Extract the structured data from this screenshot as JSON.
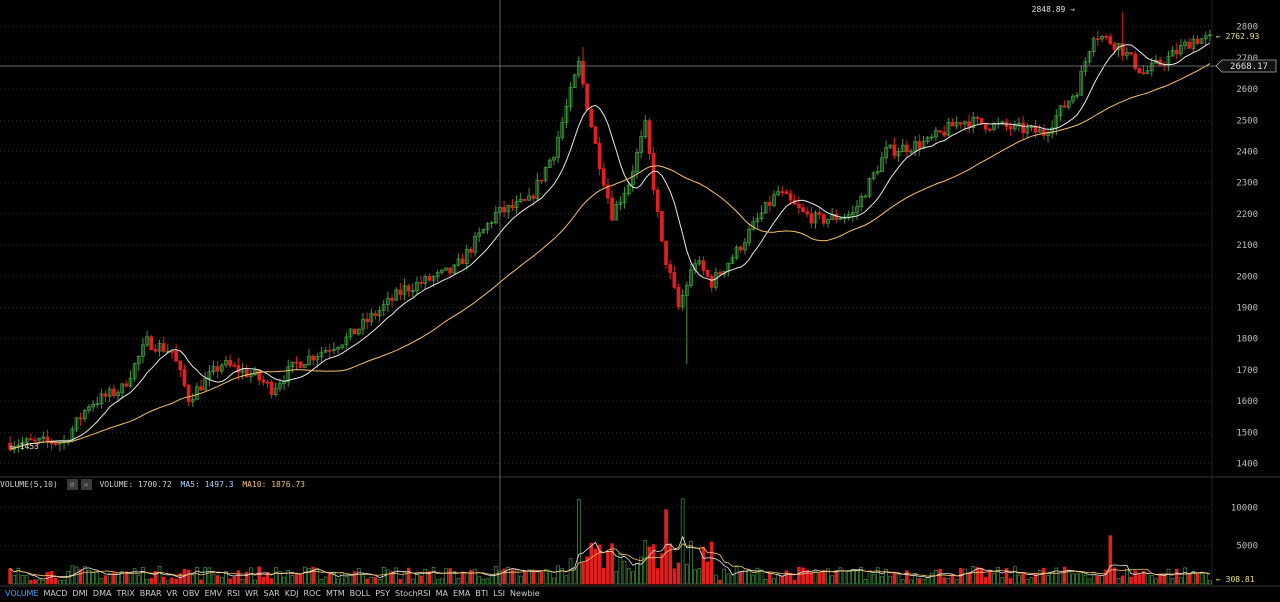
{
  "chart_data": [
    {
      "type": "candlestick",
      "ylim": [
        1360,
        2860
      ],
      "y_ticks": [
        1400,
        1500,
        1600,
        1700,
        1800,
        1900,
        2000,
        2100,
        2200,
        2300,
        2400,
        2500,
        2600,
        2700,
        2800
      ],
      "grid": true,
      "annotations": {
        "high_label": "2848.89 →",
        "low_label": "← 1453",
        "last_label": "← 2762.93",
        "crosshair_label": "2668.17"
      },
      "ma_series": [
        {
          "name": "MA5",
          "color": "#e8e8e8"
        },
        {
          "name": "MA10",
          "color": "#f5c26b"
        }
      ]
    },
    {
      "type": "bar",
      "ylim": [
        0,
        12000
      ],
      "y_ticks": [
        5000,
        10000
      ],
      "last_label": "← 308.81",
      "indicator": "VOLUME(5,10)",
      "readout": {
        "volume": "VOLUME: 1700.72",
        "ma5": "MA5: 1497.3",
        "ma10": "MA10: 1876.73"
      }
    }
  ],
  "indicator_tabs": [
    "VOLUME",
    "MACD",
    "DMI",
    "DMA",
    "TRIX",
    "BRAR",
    "VR",
    "OBV",
    "EMV",
    "RSI",
    "WR",
    "SAR",
    "KDJ",
    "ROC",
    "MTM",
    "BOLL",
    "PSY",
    "StochRSI",
    "MA",
    "EMA",
    "BTI",
    "LSI",
    "Newbie"
  ],
  "active_tab": "VOLUME",
  "colors": {
    "up": "#3f9a3f",
    "down": "#e02020",
    "grid": "#2a2a2a",
    "axis_text": "#bdbdbd",
    "crosshair": "#8a8a8a",
    "highlight": "#e8e07a"
  }
}
